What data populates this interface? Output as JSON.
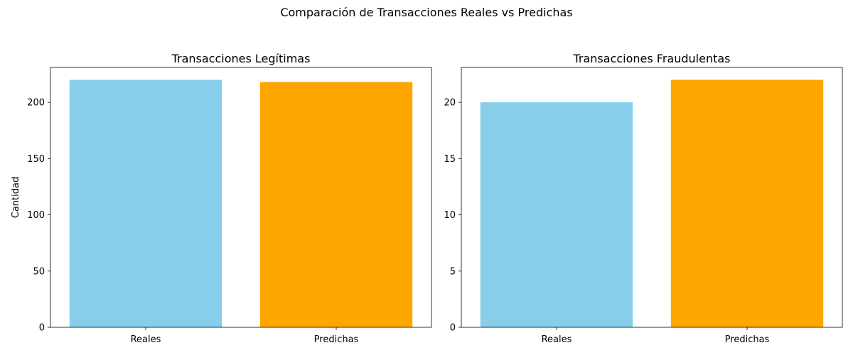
{
  "suptitle": "Comparación de Transacciones Reales vs Predichas",
  "colors": {
    "reales": "#87ceeb",
    "predichas": "#ffa500",
    "axis": "#000000"
  },
  "chart_data": [
    {
      "type": "bar",
      "title": "Transacciones Legítimas",
      "categories": [
        "Reales",
        "Predichas"
      ],
      "values": [
        220,
        218
      ],
      "ylabel": "Cantidad",
      "xlabel": "",
      "ylim": [
        0,
        231
      ],
      "yticks": [
        0,
        50,
        100,
        150,
        200
      ],
      "grid": false
    },
    {
      "type": "bar",
      "title": "Transacciones Fraudulentas",
      "categories": [
        "Reales",
        "Predichas"
      ],
      "values": [
        20,
        22
      ],
      "ylabel": "",
      "xlabel": "",
      "ylim": [
        0,
        23.1
      ],
      "yticks": [
        0,
        5,
        10,
        15,
        20
      ],
      "grid": false
    }
  ]
}
